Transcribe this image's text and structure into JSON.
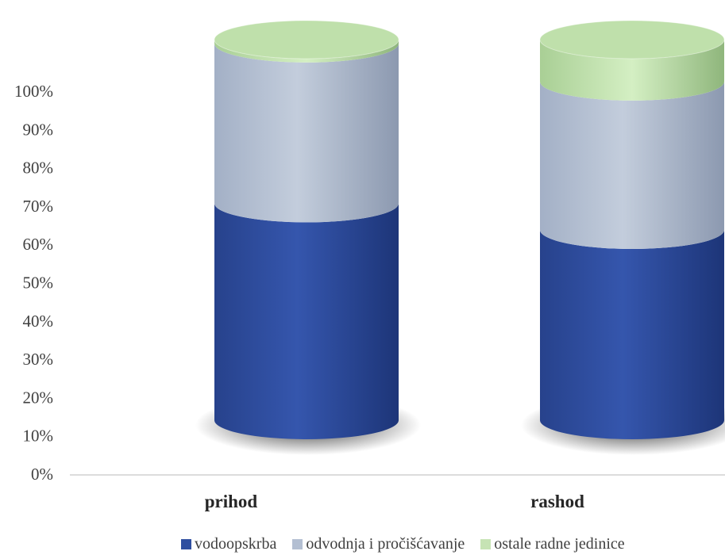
{
  "chart_data": {
    "type": "bar",
    "stacked": true,
    "style": "3d-cylinder",
    "categories": [
      "prihod",
      "rashod"
    ],
    "series": [
      {
        "name": "vodoopskrba",
        "values": [
          57,
          50
        ],
        "color": "#2f4fa0"
      },
      {
        "name": "odvodnja i pročišćavanje",
        "values": [
          42,
          39
        ],
        "color": "#b3bfd2"
      },
      {
        "name": "ostale radne jedinice",
        "values": [
          1,
          11
        ],
        "color": "#c6e3b4"
      }
    ],
    "yticks": [
      "0%",
      "10%",
      "20%",
      "30%",
      "40%",
      "50%",
      "60%",
      "70%",
      "80%",
      "90%",
      "100%"
    ],
    "ylim": [
      0,
      100
    ],
    "grid": false,
    "legend": "bottom"
  }
}
